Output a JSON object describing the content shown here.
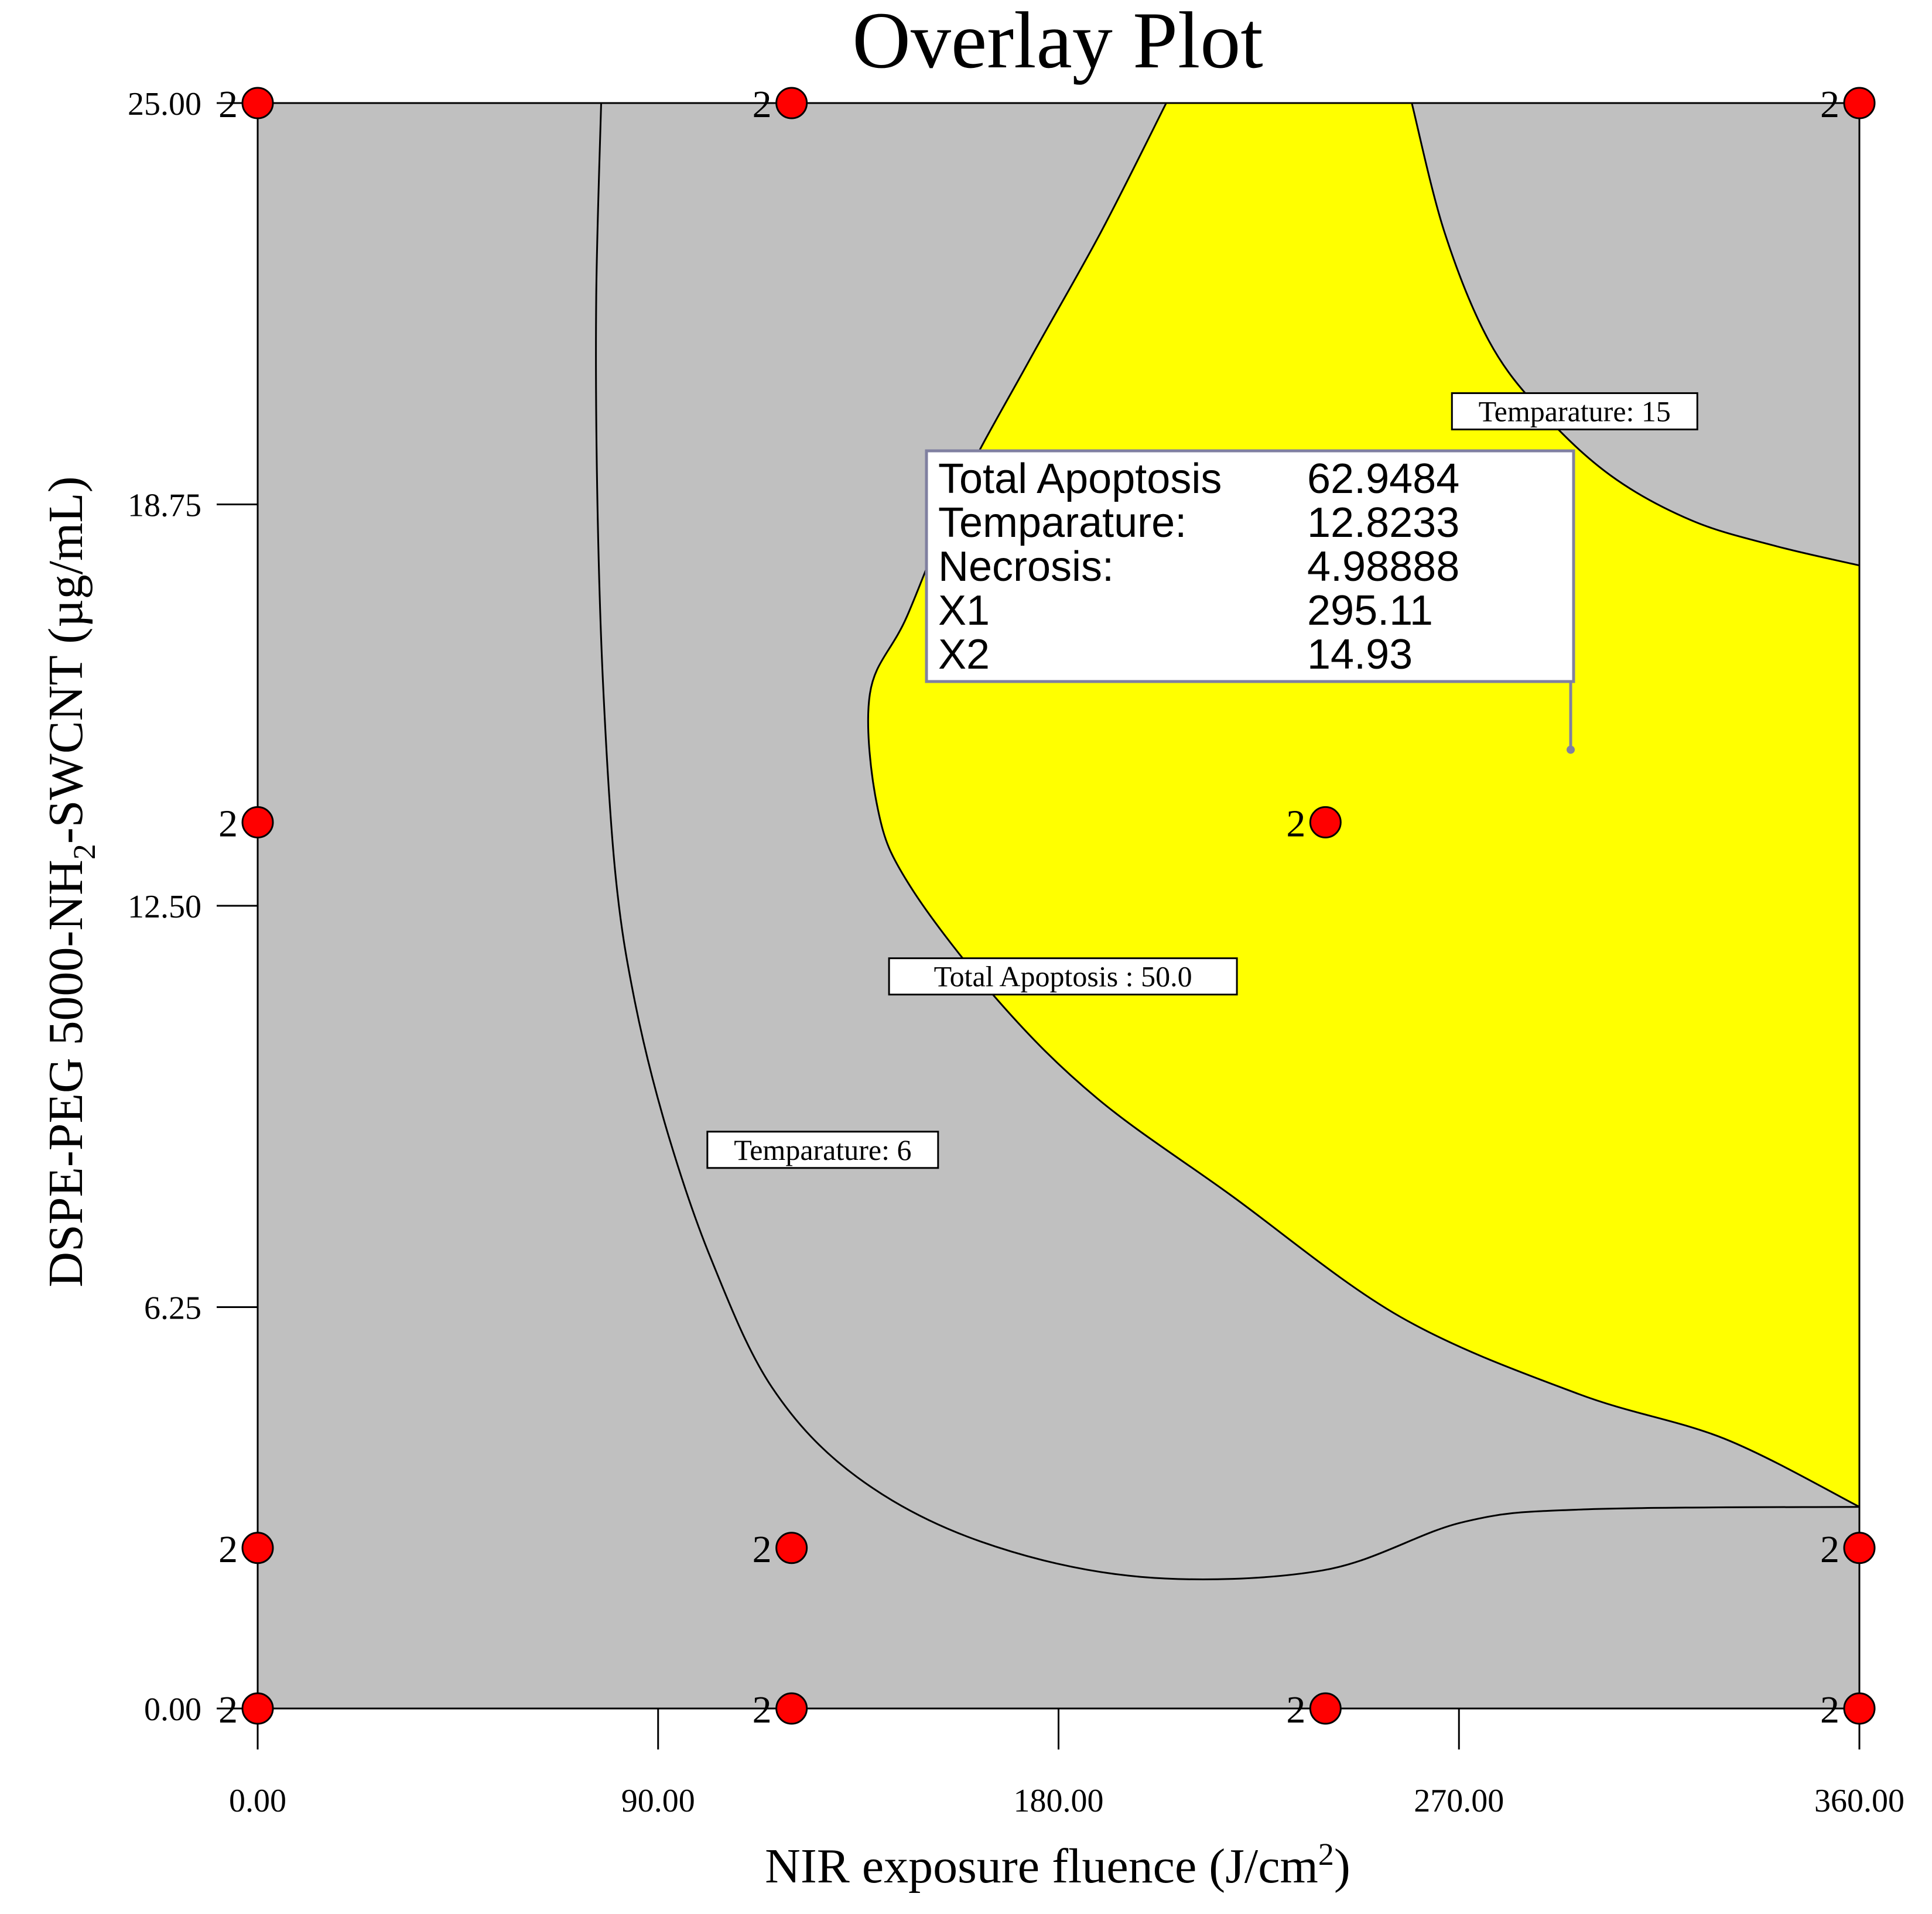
{
  "chart_data": {
    "type": "contour",
    "title": "Overlay Plot",
    "xlabel": {
      "main": "NIR exposure fluence (J/cm",
      "sup": "2",
      "tail": ")"
    },
    "ylabel": {
      "main": "DSPE-PEG 5000-NH",
      "sub": "2",
      "tail": "-SWCNT (µg/mL)"
    },
    "xlim": [
      0,
      360
    ],
    "ylim": [
      0,
      25
    ],
    "x_ticks": [
      0,
      90,
      180,
      270,
      360
    ],
    "x_tick_labels": [
      "0.00",
      "90.00",
      "180.00",
      "270.00",
      "360.00"
    ],
    "y_ticks": [
      0,
      6.25,
      12.5,
      18.75,
      25
    ],
    "y_tick_labels": [
      "0.00",
      "6.25",
      "12.50",
      "18.75",
      "25.00"
    ],
    "colors": {
      "background": "#c0c0c0",
      "feasible_region": "#ffff00",
      "design_point": "#ff0000"
    },
    "design_points": {
      "replicate_label": "2",
      "points": [
        {
          "x": 0,
          "y": 25
        },
        {
          "x": 120,
          "y": 25
        },
        {
          "x": 360,
          "y": 25
        },
        {
          "x": 0,
          "y": 13.8
        },
        {
          "x": 240,
          "y": 13.8
        },
        {
          "x": 0,
          "y": 2.5
        },
        {
          "x": 120,
          "y": 2.5
        },
        {
          "x": 360,
          "y": 2.5
        },
        {
          "x": 0,
          "y": 0
        },
        {
          "x": 120,
          "y": 0
        },
        {
          "x": 240,
          "y": 0
        },
        {
          "x": 360,
          "y": 0
        }
      ]
    },
    "contours": [
      {
        "label": "Temparature: 6",
        "label_at": {
          "x": 127,
          "y": 8.7
        },
        "points": [
          [
            77.2,
            25
          ],
          [
            76.1,
            22
          ],
          [
            76.3,
            19
          ],
          [
            77.6,
            16
          ],
          [
            80.4,
            13
          ],
          [
            84.8,
            11
          ],
          [
            92,
            9
          ],
          [
            101.9,
            7
          ],
          [
            115.6,
            5
          ],
          [
            134.8,
            3.6
          ],
          [
            162.5,
            2.6
          ],
          [
            198.5,
            2.05
          ],
          [
            239.3,
            2.15
          ],
          [
            270.8,
            2.9
          ],
          [
            297.9,
            3.1
          ],
          [
            360,
            3.14
          ]
        ]
      },
      {
        "label": "Total Apoptosis : 50.0",
        "label_at": {
          "x": 181,
          "y": 11.4
        },
        "points": [
          [
            204.2,
            25
          ],
          [
            189.6,
            23
          ],
          [
            173.5,
            21
          ],
          [
            157.9,
            19
          ],
          [
            145.9,
            17
          ],
          [
            137.6,
            15.8
          ],
          [
            139.4,
            14
          ],
          [
            146.7,
            12.8
          ],
          [
            166.7,
            11
          ],
          [
            188.7,
            9.5
          ],
          [
            218.6,
            8
          ],
          [
            256.8,
            6.1
          ],
          [
            296.8,
            4.9
          ],
          [
            329.7,
            4.2
          ],
          [
            360,
            3.14
          ]
        ]
      },
      {
        "label": "Temparature: 15",
        "label_at": {
          "x": 296,
          "y": 20.2
        },
        "points": [
          [
            259.4,
            25
          ],
          [
            266.7,
            23
          ],
          [
            276.7,
            21.3
          ],
          [
            288.5,
            20.2
          ],
          [
            304.1,
            19.2
          ],
          [
            322.3,
            18.5
          ],
          [
            341.3,
            18.1
          ],
          [
            360,
            17.8
          ]
        ]
      }
    ],
    "flag": {
      "rows": [
        {
          "name": "Total Apoptosis",
          "value": "62.9484"
        },
        {
          "name": "Temparature:",
          "value": "12.8233"
        },
        {
          "name": "Necrosis:",
          "value": "4.98888"
        },
        {
          "name": "X1",
          "value": "295.11"
        },
        {
          "name": "X2",
          "value": "14.93"
        }
      ],
      "point": {
        "x": 295.11,
        "y": 14.93
      }
    }
  }
}
